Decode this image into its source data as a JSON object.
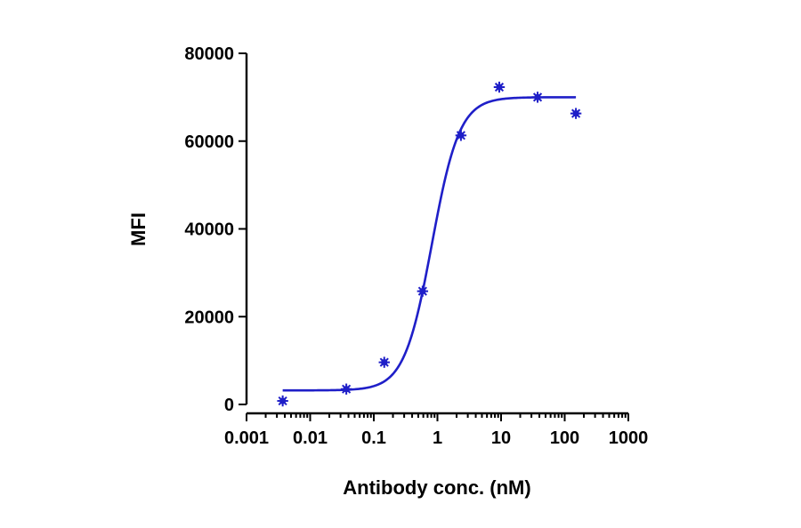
{
  "chart_data": {
    "type": "scatter",
    "title": "",
    "xlabel": "Antibody conc. (nM)",
    "ylabel": "MFI",
    "x_scale": "log",
    "xlim": [
      0.001,
      1000
    ],
    "ylim": [
      0,
      80000
    ],
    "x_ticks": [
      {
        "value": 0.001,
        "label": "0.001"
      },
      {
        "value": 0.01,
        "label": "0.01"
      },
      {
        "value": 0.1,
        "label": "0.1"
      },
      {
        "value": 1,
        "label": "1"
      },
      {
        "value": 10,
        "label": "10"
      },
      {
        "value": 100,
        "label": "100"
      },
      {
        "value": 1000,
        "label": "1000"
      }
    ],
    "y_ticks": [
      {
        "value": 0,
        "label": "0"
      },
      {
        "value": 20000,
        "label": "20000"
      },
      {
        "value": 40000,
        "label": "40000"
      },
      {
        "value": 60000,
        "label": "60000"
      },
      {
        "value": 80000,
        "label": "80000"
      }
    ],
    "grid": false,
    "legend": "none",
    "series": [
      {
        "marker": "star",
        "color": "#1f1fc8",
        "points": [
          {
            "x": 0.0037,
            "y": 800
          },
          {
            "x": 0.037,
            "y": 3500
          },
          {
            "x": 0.146,
            "y": 9600
          },
          {
            "x": 0.585,
            "y": 25800
          },
          {
            "x": 2.34,
            "y": 61300
          },
          {
            "x": 9.37,
            "y": 72300
          },
          {
            "x": 37.5,
            "y": 70000
          },
          {
            "x": 150,
            "y": 66300
          }
        ]
      }
    ],
    "fit_curve": {
      "model": "4PL",
      "color": "#1f1fc8",
      "bottom": 3200,
      "top": 70000,
      "ec50": 0.82,
      "hill": 2.0,
      "x_range": [
        0.0037,
        150
      ]
    }
  }
}
